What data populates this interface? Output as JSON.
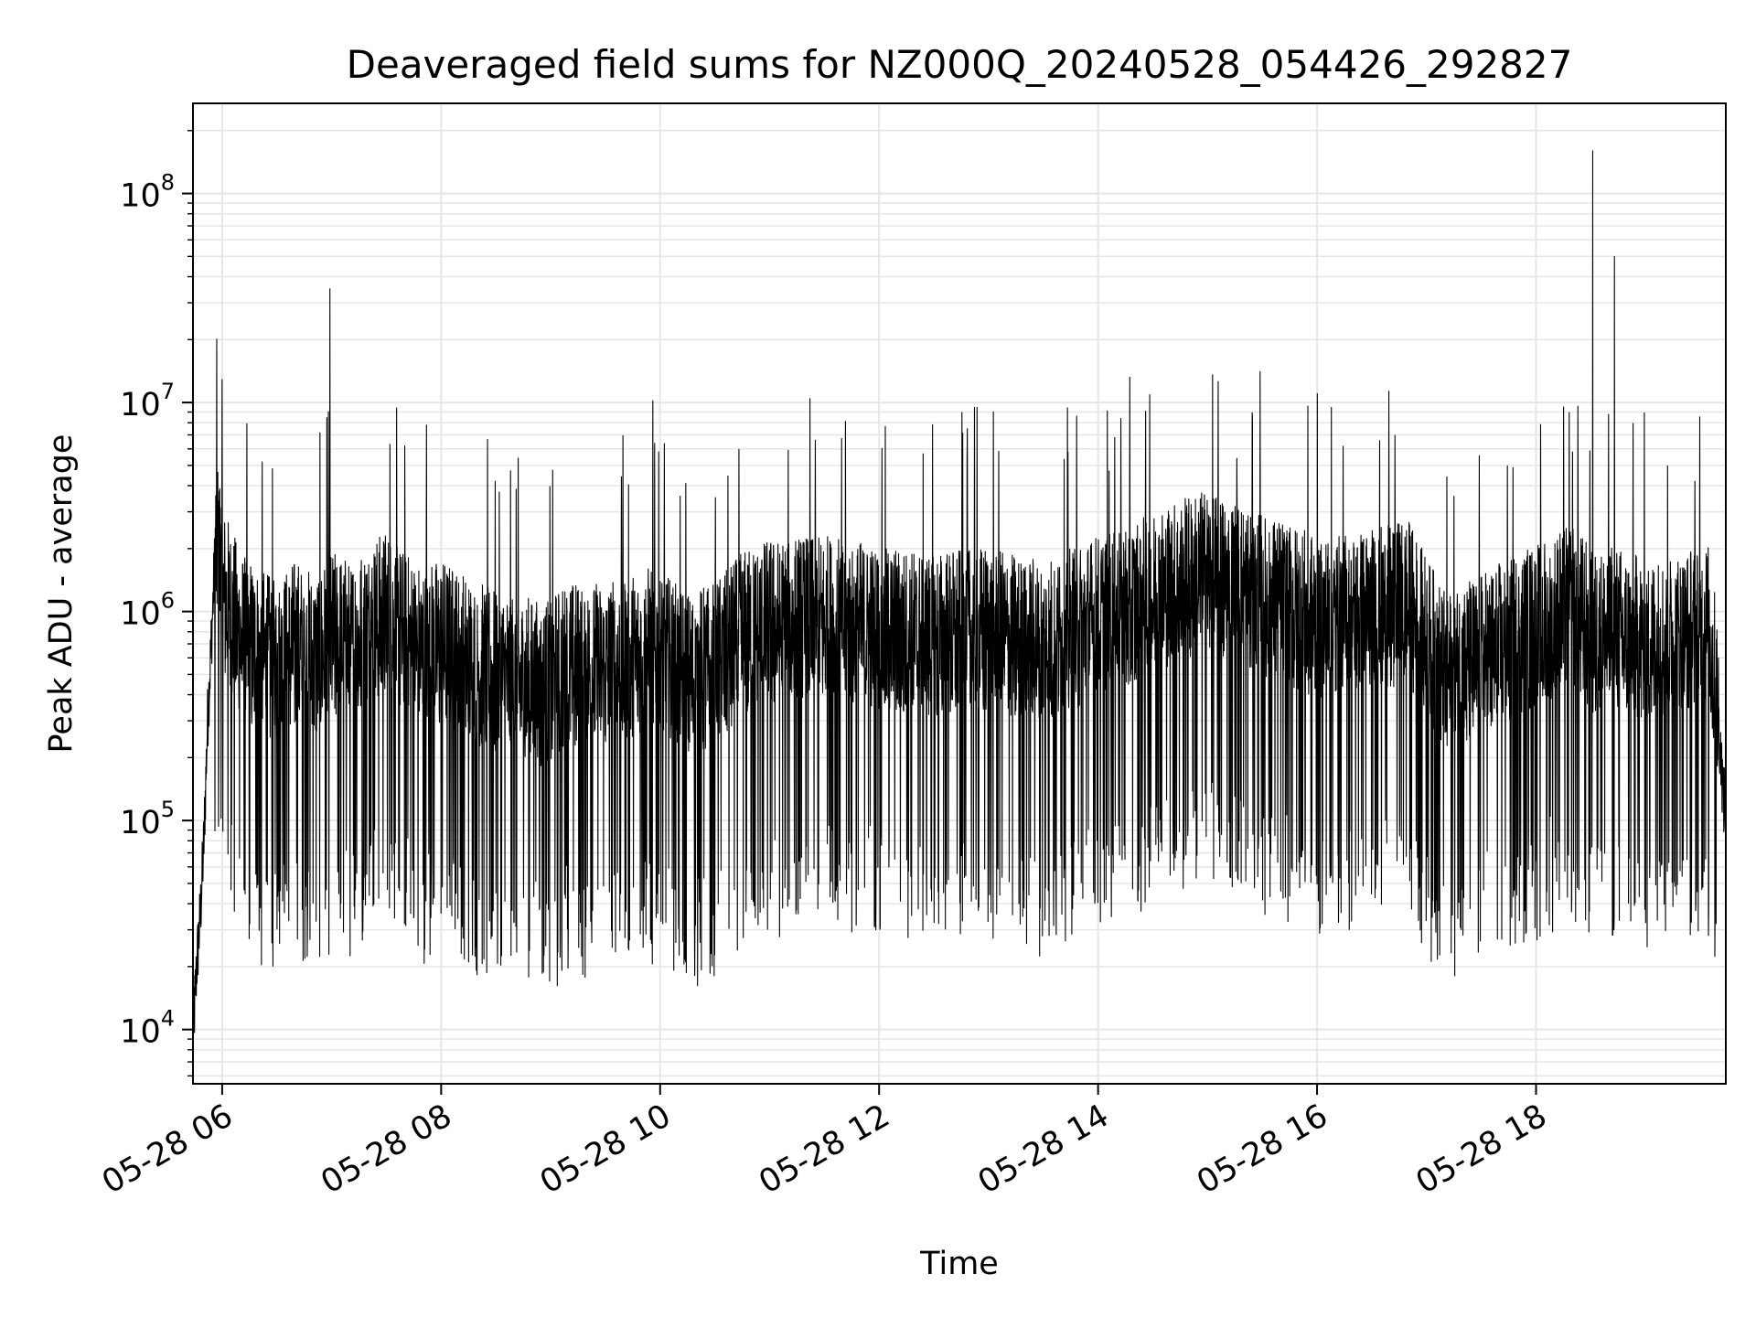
{
  "chart_data": {
    "type": "line",
    "title": "Deaveraged field sums for NZ000Q_20240528_054426_292827",
    "xlabel": "Time",
    "ylabel": "Peak ADU - average",
    "y_scale": "log",
    "y_tick_labels": [
      {
        "base": "10",
        "exp": "4",
        "value": 10000
      },
      {
        "base": "10",
        "exp": "5",
        "value": 100000
      },
      {
        "base": "10",
        "exp": "6",
        "value": 1000000
      },
      {
        "base": "10",
        "exp": "7",
        "value": 10000000
      },
      {
        "base": "10",
        "exp": "8",
        "value": 100000000
      }
    ],
    "x_tick_labels": [
      "05-28 06",
      "05-28 08",
      "05-28 10",
      "05-28 12",
      "05-28 14",
      "05-28 16",
      "05-28 18"
    ],
    "xlim": [
      "2024-05-28 05:44",
      "2024-05-28 19:44"
    ],
    "ylim": [
      5500,
      270000000
    ],
    "grid": "major and minor",
    "line_color": "#000000",
    "grid_color": "#e6e6e6",
    "series": [
      {
        "x": [
          "2024-05-28 05:44",
          "2024-05-28 05:46",
          "2024-05-28 05:48",
          "2024-05-28 05:50",
          "2024-05-28 05:52",
          "2024-05-28 05:54",
          "2024-05-28 05:56",
          "2024-05-28 05:58",
          "2024-05-28 06:00",
          "2024-05-28 06:10",
          "2024-05-28 06:20",
          "2024-05-28 06:30",
          "2024-05-28 06:40",
          "2024-05-28 06:50",
          "2024-05-28 07:00",
          "2024-05-28 07:10",
          "2024-05-28 07:20",
          "2024-05-28 07:30",
          "2024-05-28 07:40",
          "2024-05-28 07:50",
          "2024-05-28 08:00",
          "2024-05-28 08:20",
          "2024-05-28 08:40",
          "2024-05-28 08:55",
          "2024-05-28 09:10",
          "2024-05-28 09:30",
          "2024-05-28 09:56",
          "2024-05-28 10:15",
          "2024-05-28 10:30",
          "2024-05-28 10:45",
          "2024-05-28 11:00",
          "2024-05-28 11:30",
          "2024-05-28 12:00",
          "2024-05-28 12:30",
          "2024-05-28 13:00",
          "2024-05-28 13:20",
          "2024-05-28 13:40",
          "2024-05-28 14:00",
          "2024-05-28 14:20",
          "2024-05-28 14:40",
          "2024-05-28 15:00",
          "2024-05-28 15:20",
          "2024-05-28 15:40",
          "2024-05-28 16:00",
          "2024-05-28 16:30",
          "2024-05-28 16:50",
          "2024-05-28 17:10",
          "2024-05-28 17:30",
          "2024-05-28 17:50",
          "2024-05-28 18:10",
          "2024-05-28 18:20",
          "2024-05-28 18:31",
          "2024-05-28 18:43",
          "2024-05-28 19:00",
          "2024-05-28 19:20",
          "2024-05-28 19:35",
          "2024-05-28 19:40",
          "2024-05-28 19:43"
        ],
        "values": [
          9000,
          20000,
          35000,
          80000,
          300000,
          700000,
          1800000,
          2300000,
          1200000,
          700000,
          600000,
          500000,
          650000,
          550000,
          700000,
          650000,
          750000,
          900000,
          700000,
          600000,
          650000,
          500000,
          450000,
          400000,
          500000,
          500000,
          600000,
          450000,
          500000,
          700000,
          800000,
          850000,
          750000,
          700000,
          750000,
          650000,
          700000,
          850000,
          1000000,
          1200000,
          1400000,
          1200000,
          1000000,
          850000,
          900000,
          1000000,
          450000,
          550000,
          700000,
          850000,
          1000000,
          700000,
          750000,
          650000,
          700000,
          800000,
          300000,
          120000
        ]
      }
    ],
    "spikes": [
      {
        "x": "2024-05-28 06:22",
        "value": 5200000
      },
      {
        "x": "2024-05-28 06:59",
        "value": 35000000
      },
      {
        "x": "2024-05-28 07:32",
        "value": 6300000
      },
      {
        "x": "2024-05-28 07:40",
        "value": 6200000
      },
      {
        "x": "2024-05-28 07:52",
        "value": 7800000
      },
      {
        "x": "2024-05-28 09:56",
        "value": 10200000
      },
      {
        "x": "2024-05-28 10:14",
        "value": 4100000
      },
      {
        "x": "2024-05-28 14:06",
        "value": 4700000
      },
      {
        "x": "2024-05-28 15:16",
        "value": 5400000
      },
      {
        "x": "2024-05-28 18:20",
        "value": 5800000
      },
      {
        "x": "2024-05-28 18:23",
        "value": 9600000
      },
      {
        "x": "2024-05-28 18:31",
        "value": 160000000
      },
      {
        "x": "2024-05-28 18:43",
        "value": 50000000
      },
      {
        "x": "2024-05-28 19:27",
        "value": 4200000
      }
    ]
  }
}
